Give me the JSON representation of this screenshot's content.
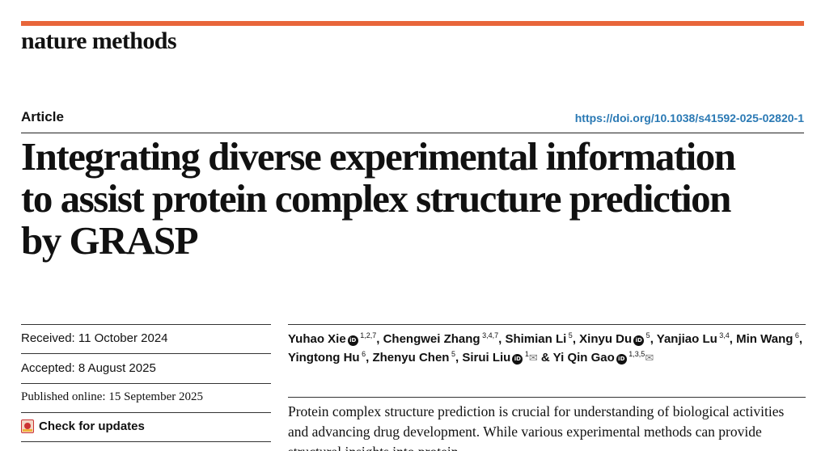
{
  "header": {
    "journal": "nature methods",
    "article_type": "Article",
    "doi": "https://doi.org/10.1038/s41592-025-02820-1",
    "accent_color": "#e8663a"
  },
  "title": "Integrating diverse experimental information to assist protein complex structure prediction by GRASP",
  "meta": {
    "received": "Received: 11 October 2024",
    "accepted": "Accepted: 8 August 2025",
    "published": "Published online: 15 September 2025",
    "check_updates": "Check for updates",
    "check_icon": "crossmark-icon"
  },
  "authors": [
    {
      "name": "Yuhao Xie",
      "orcid": true,
      "affil": "1,2,7",
      "sep": ","
    },
    {
      "name": "Chengwei Zhang",
      "orcid": false,
      "affil": "3,4,7",
      "sep": ","
    },
    {
      "name": "Shimian Li",
      "orcid": false,
      "affil": "5",
      "sep": ","
    },
    {
      "name": "Xinyu Du",
      "orcid": true,
      "affil": "5",
      "sep": ","
    },
    {
      "name": "Yanjiao Lu",
      "orcid": false,
      "affil": "3,4",
      "sep": ","
    },
    {
      "name": "Min Wang",
      "orcid": false,
      "affil": "6",
      "sep": ","
    },
    {
      "name": "Yingtong Hu",
      "orcid": false,
      "affil": "6",
      "sep": ","
    },
    {
      "name": "Zhenyu Chen",
      "orcid": false,
      "affil": "5",
      "sep": ","
    },
    {
      "name": "Sirui Liu",
      "orcid": true,
      "affil": "1",
      "mail": true,
      "sep": " &"
    },
    {
      "name": "Yi Qin Gao",
      "orcid": true,
      "affil": "1,3,5",
      "mail": true,
      "sep": ""
    }
  ],
  "abstract": "Protein complex structure prediction is crucial for understanding of biological activities and advancing drug development. While various experimental methods can provide structural insights into protein"
}
